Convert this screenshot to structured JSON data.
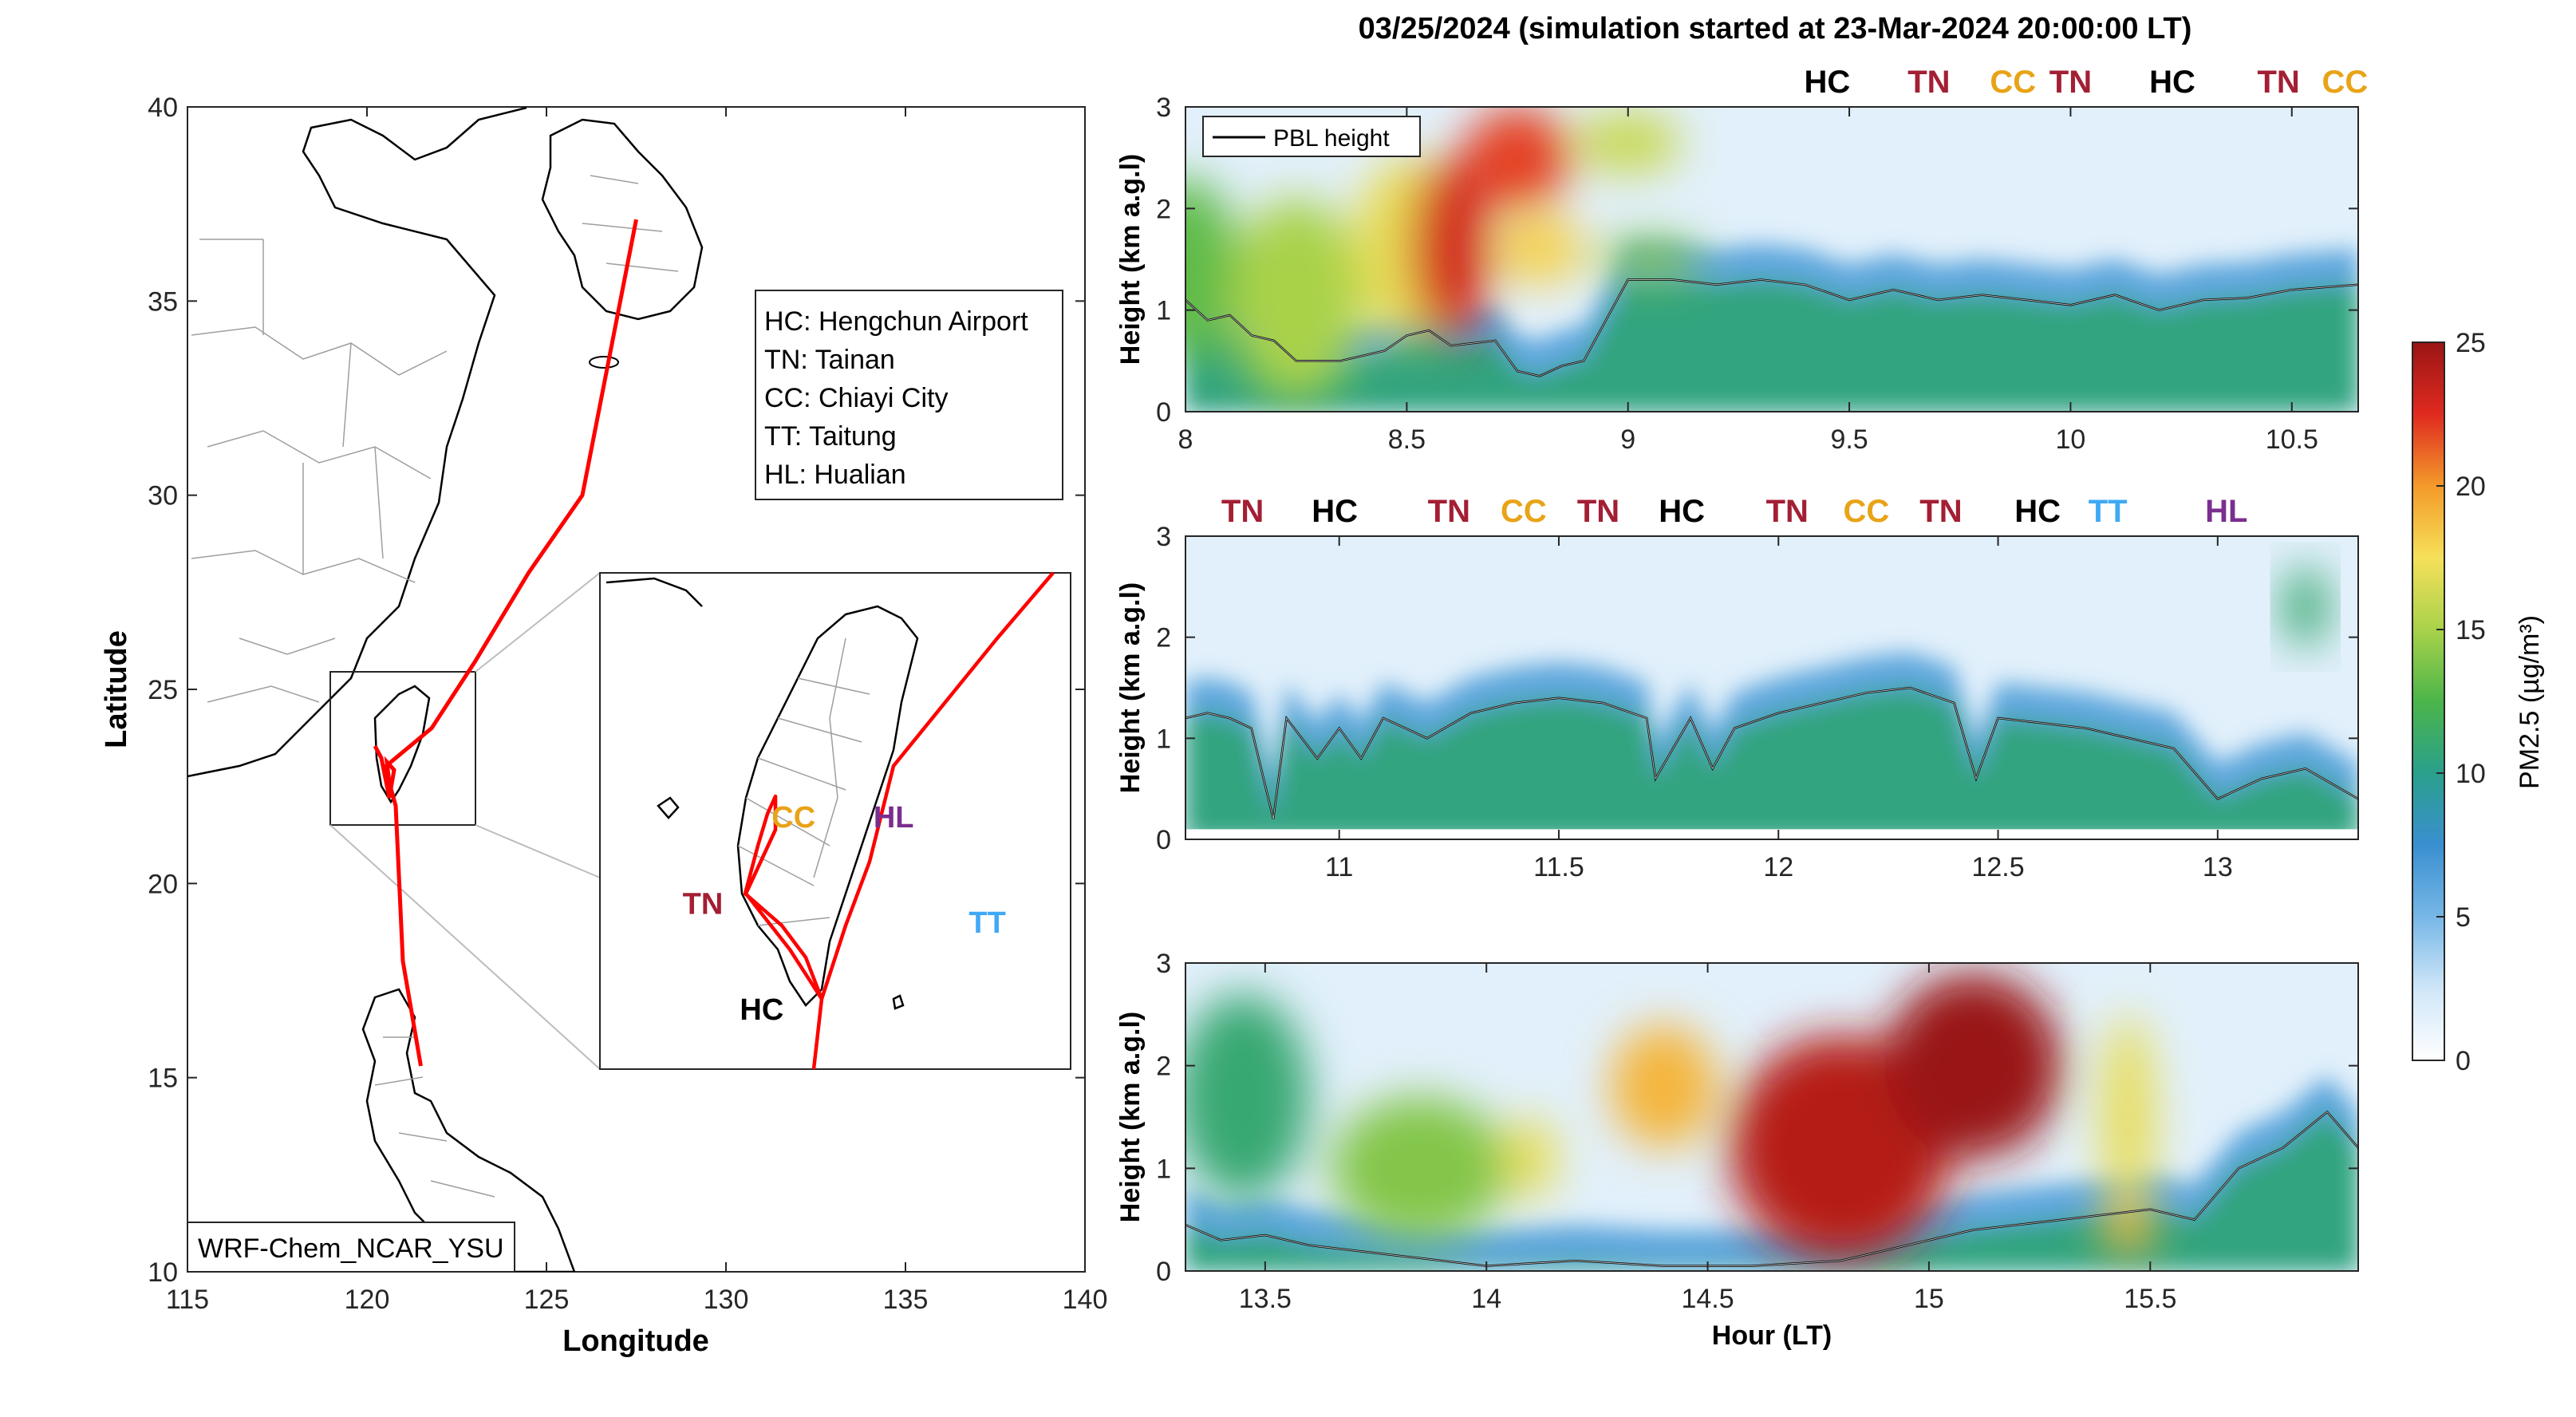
{
  "title": "03/25/2024 (simulation started at 23-Mar-2024 20:00:00 LT)",
  "colors": {
    "HC": "#000000",
    "TN": "#a31f34",
    "CC": "#e8a317",
    "TT": "#3fa9f5",
    "HL": "#7a2e8e",
    "track": "#ff0000"
  },
  "map": {
    "xlabel": "Longitude",
    "ylabel": "Latitude",
    "xlim": [
      115,
      140
    ],
    "ylim": [
      10,
      40
    ],
    "xticks": [
      "115",
      "120",
      "125",
      "130",
      "135",
      "140"
    ],
    "yticks": [
      "10",
      "15",
      "20",
      "25",
      "30",
      "35",
      "40"
    ],
    "legend": [
      "HC: Hengchun Airport",
      "TN: Tainan",
      "CC: Chiayi City",
      "TT: Taitung",
      "HL: Hualian"
    ],
    "model_label": "WRF-Chem_NCAR_YSU",
    "track": [
      [
        121.5,
        15.3
      ],
      [
        121.0,
        18.0
      ],
      [
        120.8,
        22.0
      ],
      [
        120.5,
        23.0
      ],
      [
        121.8,
        24.0
      ],
      [
        123.0,
        25.7
      ],
      [
        124.5,
        28.0
      ],
      [
        126.0,
        30.0
      ],
      [
        127.5,
        37.1
      ]
    ],
    "inset": {
      "xlim": [
        119.2,
        122.9
      ],
      "ylim": [
        21.6,
        25.6
      ],
      "labels": [
        {
          "text": "CC",
          "site": "CC",
          "lon": 120.55,
          "lat": 23.55
        },
        {
          "text": "HL",
          "site": "HL",
          "lon": 121.35,
          "lat": 23.55
        },
        {
          "text": "TN",
          "site": "TN",
          "lon": 119.85,
          "lat": 22.85
        },
        {
          "text": "TT",
          "site": "TT",
          "lon": 122.1,
          "lat": 22.7
        },
        {
          "text": "HC",
          "site": "HC",
          "lon": 120.3,
          "lat": 22.0
        }
      ]
    }
  },
  "colorbar": {
    "label": "PM2.5 (µg/m³)",
    "ticks": [
      "0",
      "5",
      "10",
      "15",
      "20",
      "25"
    ],
    "range": [
      0,
      25
    ]
  },
  "chart_data": [
    {
      "type": "heatmap",
      "xlim": [
        8,
        10.65
      ],
      "ylim": [
        0,
        3
      ],
      "xticks": [
        "8",
        "8.5",
        "9",
        "9.5",
        "10",
        "10.5"
      ],
      "yticks": [
        "0",
        "1",
        "2",
        "3"
      ],
      "ylabel": "Height (km a.g.l)",
      "legend": "PBL height",
      "site_labels": [
        {
          "text": "HC",
          "x": 9.45
        },
        {
          "text": "TN",
          "x": 9.68
        },
        {
          "text": "CC",
          "x": 9.87
        },
        {
          "text": "TN",
          "x": 10.0
        },
        {
          "text": "HC",
          "x": 10.23
        },
        {
          "text": "TN",
          "x": 10.47
        },
        {
          "text": "CC",
          "x": 10.62
        }
      ],
      "pbl": [
        [
          8.0,
          1.1
        ],
        [
          8.05,
          0.9
        ],
        [
          8.1,
          0.95
        ],
        [
          8.15,
          0.75
        ],
        [
          8.2,
          0.7
        ],
        [
          8.25,
          0.5
        ],
        [
          8.35,
          0.5
        ],
        [
          8.45,
          0.6
        ],
        [
          8.5,
          0.75
        ],
        [
          8.55,
          0.8
        ],
        [
          8.6,
          0.65
        ],
        [
          8.7,
          0.7
        ],
        [
          8.75,
          0.4
        ],
        [
          8.8,
          0.35
        ],
        [
          8.85,
          0.45
        ],
        [
          8.9,
          0.5
        ],
        [
          8.95,
          0.9
        ],
        [
          9.0,
          1.3
        ],
        [
          9.1,
          1.3
        ],
        [
          9.2,
          1.25
        ],
        [
          9.3,
          1.3
        ],
        [
          9.4,
          1.25
        ],
        [
          9.5,
          1.1
        ],
        [
          9.6,
          1.2
        ],
        [
          9.7,
          1.1
        ],
        [
          9.8,
          1.15
        ],
        [
          9.9,
          1.1
        ],
        [
          10.0,
          1.05
        ],
        [
          10.1,
          1.15
        ],
        [
          10.2,
          1.0
        ],
        [
          10.3,
          1.1
        ],
        [
          10.4,
          1.12
        ],
        [
          10.5,
          1.2
        ],
        [
          10.65,
          1.25
        ]
      ],
      "mass": [
        {
          "x": 8.0,
          "z": 1.4,
          "rx": 0.12,
          "rz": 0.9,
          "v": 13
        },
        {
          "x": 8.25,
          "z": 1.1,
          "rx": 0.15,
          "rz": 1.0,
          "v": 15
        },
        {
          "x": 8.5,
          "z": 1.6,
          "rx": 0.12,
          "rz": 0.9,
          "v": 17
        },
        {
          "x": 8.6,
          "z": 1.6,
          "rx": 0.09,
          "rz": 0.9,
          "v": 23
        },
        {
          "x": 8.75,
          "z": 2.5,
          "rx": 0.12,
          "rz": 0.5,
          "v": 22
        },
        {
          "x": 8.8,
          "z": 1.6,
          "rx": 0.1,
          "rz": 0.35,
          "v": 18
        },
        {
          "x": 9.0,
          "z": 2.65,
          "rx": 0.12,
          "rz": 0.3,
          "v": 16
        },
        {
          "x": 9.05,
          "z": 1.5,
          "rx": 0.12,
          "rz": 0.2,
          "v": 14
        }
      ]
    },
    {
      "type": "heatmap",
      "xlim": [
        10.65,
        13.32
      ],
      "ylim": [
        0,
        3
      ],
      "xticks": [
        "11",
        "11.5",
        "12",
        "12.5",
        "13"
      ],
      "yticks": [
        "0",
        "1",
        "2",
        "3"
      ],
      "ylabel": "Height (km a.g.l)",
      "site_labels": [
        {
          "text": "TN",
          "x": 10.78
        },
        {
          "text": "HC",
          "x": 10.99
        },
        {
          "text": "TN",
          "x": 11.25
        },
        {
          "text": "CC",
          "x": 11.42
        },
        {
          "text": "TN",
          "x": 11.59
        },
        {
          "text": "HC",
          "x": 11.78
        },
        {
          "text": "TN",
          "x": 12.02
        },
        {
          "text": "CC",
          "x": 12.2
        },
        {
          "text": "TN",
          "x": 12.37
        },
        {
          "text": "HC",
          "x": 12.59
        },
        {
          "text": "TT",
          "x": 12.75
        },
        {
          "text": "HL",
          "x": 13.02
        }
      ],
      "pbl": [
        [
          10.65,
          1.2
        ],
        [
          10.7,
          1.25
        ],
        [
          10.75,
          1.2
        ],
        [
          10.8,
          1.1
        ],
        [
          10.85,
          0.2
        ],
        [
          10.88,
          1.2
        ],
        [
          10.95,
          0.8
        ],
        [
          11.0,
          1.1
        ],
        [
          11.05,
          0.8
        ],
        [
          11.1,
          1.2
        ],
        [
          11.2,
          1.0
        ],
        [
          11.3,
          1.25
        ],
        [
          11.4,
          1.35
        ],
        [
          11.5,
          1.4
        ],
        [
          11.6,
          1.35
        ],
        [
          11.7,
          1.2
        ],
        [
          11.72,
          0.6
        ],
        [
          11.8,
          1.2
        ],
        [
          11.85,
          0.7
        ],
        [
          11.9,
          1.1
        ],
        [
          12.0,
          1.25
        ],
        [
          12.1,
          1.35
        ],
        [
          12.2,
          1.45
        ],
        [
          12.3,
          1.5
        ],
        [
          12.4,
          1.35
        ],
        [
          12.45,
          0.6
        ],
        [
          12.5,
          1.2
        ],
        [
          12.6,
          1.15
        ],
        [
          12.7,
          1.1
        ],
        [
          12.8,
          1.0
        ],
        [
          12.9,
          0.9
        ],
        [
          13.0,
          0.4
        ],
        [
          13.1,
          0.6
        ],
        [
          13.2,
          0.7
        ],
        [
          13.32,
          0.4
        ]
      ],
      "mass": [
        {
          "x": 13.2,
          "z": 2.3,
          "rx": 0.05,
          "rz": 0.4,
          "v": 11
        }
      ]
    },
    {
      "type": "heatmap",
      "xlim": [
        13.32,
        15.97
      ],
      "ylim": [
        0,
        3
      ],
      "xticks": [
        "13.5",
        "14",
        "14.5",
        "15",
        "15.5"
      ],
      "yticks": [
        "0",
        "1",
        "2",
        "3"
      ],
      "xlabel": "Hour (LT)",
      "ylabel": "Height (km a.g.l)",
      "pbl": [
        [
          13.32,
          0.45
        ],
        [
          13.4,
          0.3
        ],
        [
          13.5,
          0.35
        ],
        [
          13.6,
          0.25
        ],
        [
          13.7,
          0.2
        ],
        [
          13.8,
          0.15
        ],
        [
          13.9,
          0.1
        ],
        [
          14.0,
          0.05
        ],
        [
          14.2,
          0.1
        ],
        [
          14.4,
          0.05
        ],
        [
          14.6,
          0.05
        ],
        [
          14.8,
          0.1
        ],
        [
          14.9,
          0.2
        ],
        [
          15.0,
          0.3
        ],
        [
          15.1,
          0.4
        ],
        [
          15.2,
          0.45
        ],
        [
          15.3,
          0.5
        ],
        [
          15.4,
          0.55
        ],
        [
          15.5,
          0.6
        ],
        [
          15.6,
          0.5
        ],
        [
          15.7,
          1.0
        ],
        [
          15.8,
          1.2
        ],
        [
          15.9,
          1.55
        ],
        [
          15.97,
          1.2
        ]
      ],
      "mass": [
        {
          "x": 13.45,
          "z": 1.7,
          "rx": 0.15,
          "rz": 1.0,
          "v": 11
        },
        {
          "x": 13.85,
          "z": 1.0,
          "rx": 0.2,
          "rz": 0.7,
          "v": 14
        },
        {
          "x": 14.1,
          "z": 1.1,
          "rx": 0.06,
          "rz": 0.4,
          "v": 17
        },
        {
          "x": 14.4,
          "z": 1.8,
          "rx": 0.12,
          "rz": 0.6,
          "v": 19
        },
        {
          "x": 14.8,
          "z": 1.2,
          "rx": 0.25,
          "rz": 1.1,
          "v": 24
        },
        {
          "x": 15.1,
          "z": 2.0,
          "rx": 0.2,
          "rz": 0.9,
          "v": 25
        },
        {
          "x": 15.45,
          "z": 1.5,
          "rx": 0.06,
          "rz": 1.0,
          "v": 17
        },
        {
          "x": 15.45,
          "z": 0.4,
          "rx": 0.06,
          "rz": 0.25,
          "v": 19
        }
      ]
    }
  ]
}
